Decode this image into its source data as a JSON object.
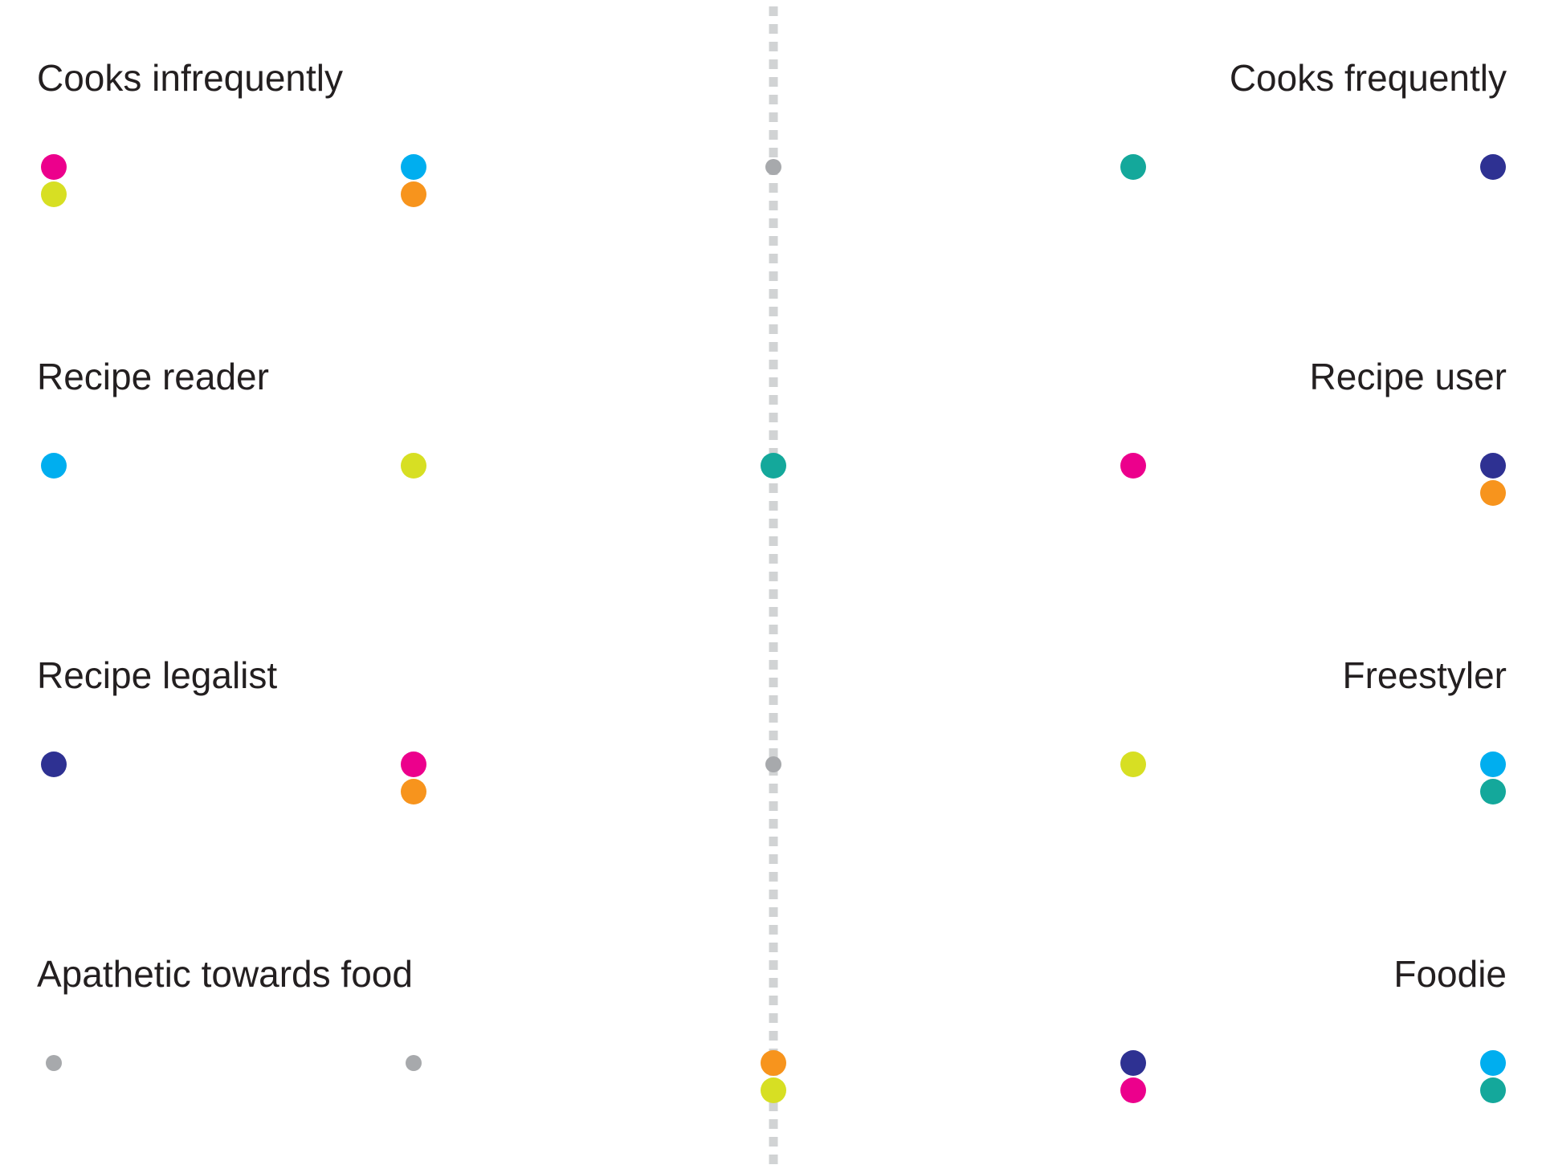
{
  "chart_data": {
    "type": "scatter",
    "title": "",
    "columns": 5,
    "colors": {
      "magenta": "#ec008c",
      "yellow": "#d7df23",
      "cyan": "#00aeef",
      "orange": "#f7941d",
      "teal": "#14a89b",
      "navy": "#2e3192",
      "gray": "#a7a9ac"
    },
    "divider_color": "#d1d3d4",
    "rows": [
      {
        "left_label": "Cooks infrequently",
        "right_label": "Cooks frequently",
        "columns": [
          [
            "magenta",
            "yellow"
          ],
          [
            "cyan",
            "orange"
          ],
          [
            "gray-small"
          ],
          [
            "teal"
          ],
          [
            "navy"
          ]
        ]
      },
      {
        "left_label": "Recipe reader",
        "right_label": "Recipe user",
        "columns": [
          [
            "cyan"
          ],
          [
            "yellow"
          ],
          [
            "teal"
          ],
          [
            "magenta"
          ],
          [
            "navy",
            "orange"
          ]
        ]
      },
      {
        "left_label": "Recipe legalist",
        "right_label": "Freestyler",
        "columns": [
          [
            "navy"
          ],
          [
            "magenta",
            "orange"
          ],
          [
            "gray-small"
          ],
          [
            "yellow"
          ],
          [
            "cyan",
            "teal"
          ]
        ]
      },
      {
        "left_label": "Apathetic towards food",
        "right_label": "Foodie",
        "columns": [
          [
            "gray-small"
          ],
          [
            "gray-small"
          ],
          [
            "orange",
            "yellow"
          ],
          [
            "navy",
            "magenta"
          ],
          [
            "cyan",
            "teal"
          ]
        ]
      }
    ]
  }
}
